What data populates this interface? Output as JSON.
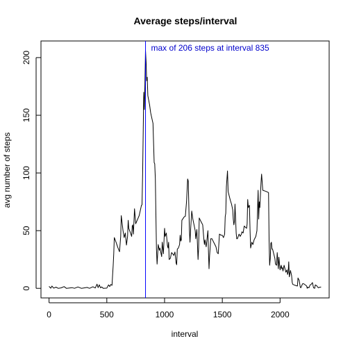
{
  "chart_data": {
    "type": "line",
    "title": "Average steps/interval",
    "xlabel": "interval",
    "ylabel": "avg number of steps",
    "xlim": [
      -70,
      2425
    ],
    "ylim": [
      -8.3,
      214.4
    ],
    "x_ticks": [
      0,
      500,
      1000,
      1500,
      2000
    ],
    "y_ticks": [
      0,
      50,
      100,
      150,
      200
    ],
    "x_tick_labels": [
      "0",
      "500",
      "1000",
      "1500",
      "2000"
    ],
    "y_tick_labels": [
      "0",
      "50",
      "100",
      "150",
      "200"
    ],
    "grid": false,
    "colors": {
      "line": "#000000",
      "marker": "#0000ff",
      "annotation": "#0000cc"
    },
    "series": [
      {
        "values": [
          [
            0,
            1.7
          ],
          [
            15,
            0.1
          ],
          [
            25,
            2.0
          ],
          [
            40,
            0.2
          ],
          [
            60,
            1.0
          ],
          [
            80,
            0.0
          ],
          [
            105,
            0.4
          ],
          [
            130,
            1.5
          ],
          [
            150,
            0.0
          ],
          [
            200,
            0.6
          ],
          [
            220,
            0.0
          ],
          [
            250,
            1.2
          ],
          [
            280,
            0.0
          ],
          [
            330,
            0.8
          ],
          [
            350,
            0.0
          ],
          [
            380,
            1.4
          ],
          [
            400,
            0.3
          ],
          [
            415,
            3.6
          ],
          [
            425,
            0.6
          ],
          [
            435,
            3.1
          ],
          [
            445,
            0.5
          ],
          [
            455,
            1.2
          ],
          [
            470,
            0.0
          ],
          [
            500,
            0.2
          ],
          [
            515,
            3.0
          ],
          [
            525,
            1.6
          ],
          [
            535,
            3.4
          ],
          [
            545,
            2.6
          ],
          [
            550,
            11.0
          ],
          [
            555,
            20.0
          ],
          [
            560,
            30.0
          ],
          [
            565,
            44.0
          ],
          [
            580,
            40.0
          ],
          [
            595,
            35.5
          ],
          [
            610,
            31.7
          ],
          [
            620,
            45.0
          ],
          [
            625,
            63.0
          ],
          [
            640,
            50.2
          ],
          [
            650,
            44.0
          ],
          [
            660,
            48.0
          ],
          [
            670,
            37.5
          ],
          [
            680,
            45.0
          ],
          [
            685,
            59.0
          ],
          [
            690,
            52.0
          ],
          [
            705,
            48.0
          ],
          [
            715,
            45.0
          ],
          [
            720,
            54.0
          ],
          [
            725,
            55.0
          ],
          [
            730,
            47.0
          ],
          [
            740,
            69.0
          ],
          [
            750,
            56.0
          ],
          [
            780,
            63.0
          ],
          [
            800,
            72.0
          ],
          [
            805,
            72.4
          ],
          [
            810,
            100.0
          ],
          [
            820,
            170.0
          ],
          [
            825,
            155.0
          ],
          [
            830,
            177.3
          ],
          [
            835,
            206.2
          ],
          [
            840,
            196.0
          ],
          [
            845,
            180.0
          ],
          [
            850,
            183.0
          ],
          [
            855,
            167.0
          ],
          [
            870,
            159.0
          ],
          [
            880,
            152.0
          ],
          [
            900,
            143.0
          ],
          [
            910,
            109.0
          ],
          [
            915,
            108.0
          ],
          [
            920,
            95.0
          ],
          [
            925,
            64.0
          ],
          [
            930,
            34.0
          ],
          [
            935,
            21.0
          ],
          [
            945,
            38.0
          ],
          [
            955,
            33.0
          ],
          [
            960,
            35.0
          ],
          [
            975,
            27.5
          ],
          [
            980,
            40.0
          ],
          [
            990,
            30.0
          ],
          [
            1000,
            52.0
          ],
          [
            1005,
            45.0
          ],
          [
            1015,
            48.0
          ],
          [
            1025,
            37.0
          ],
          [
            1030,
            35.0
          ],
          [
            1035,
            40.0
          ],
          [
            1040,
            25.0
          ],
          [
            1050,
            26.0
          ],
          [
            1060,
            31.0
          ],
          [
            1070,
            30.0
          ],
          [
            1080,
            28.5
          ],
          [
            1090,
            31.5
          ],
          [
            1100,
            22.0
          ],
          [
            1105,
            20.5
          ],
          [
            1110,
            34.0
          ],
          [
            1120,
            35.0
          ],
          [
            1130,
            38.0
          ],
          [
            1135,
            46.0
          ],
          [
            1140,
            41.0
          ],
          [
            1145,
            42.0
          ],
          [
            1150,
            59.0
          ],
          [
            1160,
            60.5
          ],
          [
            1170,
            62.0
          ],
          [
            1180,
            62.5
          ],
          [
            1190,
            75.0
          ],
          [
            1200,
            94.8
          ],
          [
            1205,
            93.0
          ],
          [
            1215,
            51.0
          ],
          [
            1220,
            40.0
          ],
          [
            1225,
            50.0
          ],
          [
            1235,
            67.0
          ],
          [
            1245,
            60.0
          ],
          [
            1255,
            55.0
          ],
          [
            1265,
            50.0
          ],
          [
            1270,
            43.0
          ],
          [
            1280,
            51.0
          ],
          [
            1290,
            25.0
          ],
          [
            1295,
            35.0
          ],
          [
            1300,
            61.0
          ],
          [
            1310,
            59.0
          ],
          [
            1320,
            57.0
          ],
          [
            1330,
            55.0
          ],
          [
            1340,
            43.0
          ],
          [
            1345,
            38.0
          ],
          [
            1350,
            42.0
          ],
          [
            1360,
            36.0
          ],
          [
            1375,
            50.0
          ],
          [
            1380,
            32.0
          ],
          [
            1385,
            17.0
          ],
          [
            1390,
            28.0
          ],
          [
            1400,
            43.0
          ],
          [
            1410,
            43.0
          ],
          [
            1430,
            39.0
          ],
          [
            1445,
            36.0
          ],
          [
            1455,
            31.0
          ],
          [
            1465,
            30.0
          ],
          [
            1475,
            47.0
          ],
          [
            1490,
            46.0
          ],
          [
            1500,
            46.0
          ],
          [
            1510,
            44.0
          ],
          [
            1520,
            47.0
          ],
          [
            1525,
            62.0
          ],
          [
            1530,
            65.0
          ],
          [
            1535,
            88.0
          ],
          [
            1545,
            101.8
          ],
          [
            1550,
            84.0
          ],
          [
            1560,
            80.0
          ],
          [
            1570,
            76.0
          ],
          [
            1580,
            73.0
          ],
          [
            1590,
            68.0
          ],
          [
            1595,
            60.0
          ],
          [
            1600,
            55.0
          ],
          [
            1605,
            58.0
          ],
          [
            1610,
            73.0
          ],
          [
            1615,
            60.0
          ],
          [
            1620,
            48.0
          ],
          [
            1625,
            43.0
          ],
          [
            1630,
            43.0
          ],
          [
            1645,
            47.0
          ],
          [
            1655,
            45.0
          ],
          [
            1665,
            47.0
          ],
          [
            1670,
            49.0
          ],
          [
            1680,
            48.0
          ],
          [
            1690,
            54.0
          ],
          [
            1700,
            53.0
          ],
          [
            1710,
            52.0
          ],
          [
            1715,
            56.0
          ],
          [
            1720,
            77.0
          ],
          [
            1725,
            70.0
          ],
          [
            1735,
            72.0
          ],
          [
            1740,
            50.0
          ],
          [
            1745,
            35.0
          ],
          [
            1755,
            40.0
          ],
          [
            1765,
            38.0
          ],
          [
            1775,
            42.0
          ],
          [
            1790,
            45.0
          ],
          [
            1800,
            50.0
          ],
          [
            1810,
            85.0
          ],
          [
            1815,
            60.0
          ],
          [
            1820,
            75.0
          ],
          [
            1825,
            70.0
          ],
          [
            1835,
            92.0
          ],
          [
            1840,
            99.0
          ],
          [
            1850,
            85.0
          ],
          [
            1880,
            84.0
          ],
          [
            1900,
            83.0
          ],
          [
            1905,
            41.0
          ],
          [
            1910,
            20.0
          ],
          [
            1915,
            26.0
          ],
          [
            1920,
            39.0
          ],
          [
            1925,
            40.0
          ],
          [
            1930,
            34.0
          ],
          [
            1935,
            34.0
          ],
          [
            1950,
            28.0
          ],
          [
            1955,
            26.0
          ],
          [
            1960,
            21.0
          ],
          [
            1970,
            20.0
          ],
          [
            1975,
            31.0
          ],
          [
            1985,
            17.0
          ],
          [
            1990,
            27.0
          ],
          [
            2000,
            16.0
          ],
          [
            2010,
            20.0
          ],
          [
            2015,
            17.0
          ],
          [
            2020,
            18.0
          ],
          [
            2025,
            15.0
          ],
          [
            2035,
            20.0
          ],
          [
            2045,
            16.0
          ],
          [
            2050,
            14.0
          ],
          [
            2060,
            16.0
          ],
          [
            2065,
            12.0
          ],
          [
            2070,
            14.0
          ],
          [
            2075,
            23.0
          ],
          [
            2080,
            10.0
          ],
          [
            2090,
            15.5
          ],
          [
            2100,
            11.0
          ],
          [
            2105,
            5.0
          ],
          [
            2110,
            3.5
          ],
          [
            2120,
            3.0
          ],
          [
            2135,
            2.5
          ],
          [
            2150,
            2.0
          ],
          [
            2155,
            9.0
          ],
          [
            2165,
            7.0
          ],
          [
            2175,
            1.0
          ],
          [
            2180,
            0.5
          ],
          [
            2195,
            4.0
          ],
          [
            2205,
            4.0
          ],
          [
            2225,
            2.5
          ],
          [
            2230,
            2.0
          ],
          [
            2235,
            0.0
          ],
          [
            2240,
            1.0
          ],
          [
            2250,
            0.5
          ],
          [
            2260,
            3.0
          ],
          [
            2270,
            3.5
          ],
          [
            2280,
            5.0
          ],
          [
            2290,
            0.5
          ],
          [
            2300,
            0.0
          ],
          [
            2305,
            3.0
          ],
          [
            2320,
            2.0
          ],
          [
            2330,
            0.5
          ],
          [
            2345,
            1.0
          ],
          [
            2355,
            1.1
          ]
        ]
      }
    ],
    "marker": {
      "x": 835
    },
    "annotation": {
      "text": "max of 206 steps at interval 835",
      "x": 835,
      "y": 206
    }
  }
}
